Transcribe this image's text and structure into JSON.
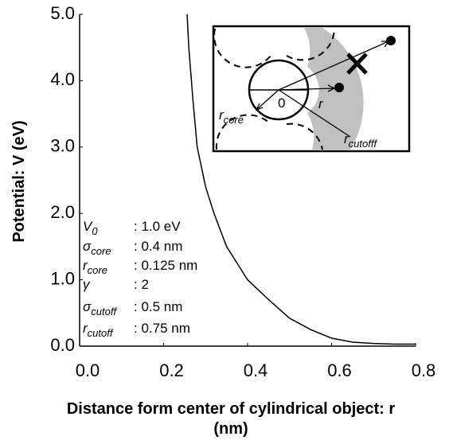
{
  "chart_data": {
    "type": "line",
    "ylabel": "Potential: V (eV)",
    "xlabel": [
      "Distance form center of cylindrical object: r",
      "(nm)"
    ],
    "x": [
      0.256,
      0.26,
      0.27,
      0.28,
      0.3,
      0.32,
      0.35,
      0.4,
      0.45,
      0.5,
      0.55,
      0.6,
      0.65,
      0.7,
      0.75,
      0.8
    ],
    "values": [
      5.0,
      4.5,
      3.7,
      3.0,
      2.4,
      2.0,
      1.5,
      1.0,
      0.7,
      0.42,
      0.25,
      0.12,
      0.06,
      0.04,
      0.03,
      0.03
    ],
    "color": "#000000",
    "xlim": [
      0,
      0.8
    ],
    "ylim": [
      0,
      5
    ],
    "xticks": [
      {
        "value": 0,
        "label": "0.0"
      },
      0.2,
      0.4,
      0.6,
      0.8
    ],
    "yticks": [
      {
        "value": 0,
        "label": "0.0"
      },
      {
        "value": 1,
        "label": "1.0"
      },
      {
        "value": 2,
        "label": "2.0"
      },
      {
        "value": 3,
        "label": "3.0"
      },
      {
        "value": 4,
        "label": "4.0"
      },
      {
        "value": 5,
        "label": "5.0"
      }
    ],
    "grid": false,
    "parameters": [
      {
        "symbol": "V",
        "sub": "0",
        "value": ": 1.0 eV"
      },
      {
        "symbol": "σ",
        "sub": "core",
        "value": ": 0.4 nm"
      },
      {
        "symbol": "r",
        "sub": "core",
        "value": ": 0.125 nm"
      },
      {
        "symbol": "γ",
        "value": ": 2"
      },
      {
        "symbol": "σ",
        "sub": "cutoff",
        "value": ": 0.5 nm"
      },
      {
        "symbol": "r",
        "sub": "cutoff",
        "value": ": 0.75 nm"
      }
    ],
    "inset": {
      "origin": "0",
      "r": "r",
      "rcore": {
        "symbol": "r",
        "sub": "core"
      },
      "rcutoff": {
        "symbol": "r",
        "sub": "cutofff"
      }
    }
  }
}
